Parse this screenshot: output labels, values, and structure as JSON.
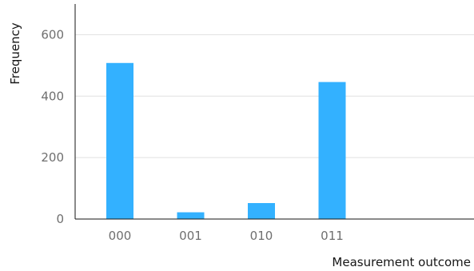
{
  "chart_data": {
    "type": "bar",
    "title": "",
    "xlabel": "Measurement outcome",
    "ylabel": "Frequency",
    "categories": [
      "000",
      "001",
      "010",
      "011"
    ],
    "values": [
      508,
      22,
      52,
      446
    ],
    "ylim": [
      0,
      700
    ],
    "yticks": [
      0,
      200,
      400,
      600
    ],
    "grid": "horizontal",
    "bar_color": "#33b1ff",
    "grid_color": "#e0e0e0",
    "axis_color": "#161616"
  }
}
